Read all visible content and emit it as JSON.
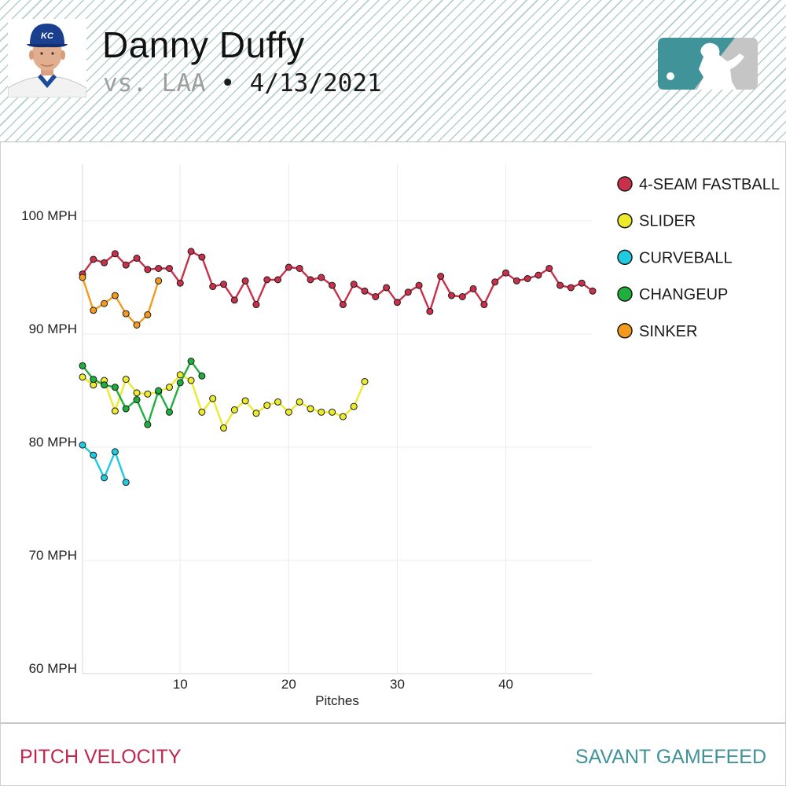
{
  "header": {
    "pitcher_name": "Danny Duffy",
    "opponent": "vs. LAA",
    "separator": "•",
    "date": "4/13/2021"
  },
  "footer": {
    "left_label": "PITCH VELOCITY",
    "right_label": "SAVANT GAMEFEED"
  },
  "colors": {
    "fastball": "#c9304a",
    "slider": "#ecea2c",
    "curveball": "#1ecbe1",
    "changeup": "#1faf3c",
    "sinker": "#f49a1c",
    "brand_teal": "#41939a",
    "brand_red": "#c2264f"
  },
  "icons": {
    "logo": "mlb-logo-icon",
    "avatar": "player-headshot"
  },
  "chart_data": {
    "type": "line",
    "title": "",
    "xlabel": "Pitches",
    "ylabel": "",
    "xlim": [
      1,
      48
    ],
    "ylim": [
      60,
      105
    ],
    "x_ticks": [
      10,
      20,
      30,
      40
    ],
    "y_ticks": [
      {
        "value": 60,
        "label": "60 MPH"
      },
      {
        "value": 70,
        "label": "70 MPH"
      },
      {
        "value": 80,
        "label": "80 MPH"
      },
      {
        "value": 90,
        "label": "90 MPH"
      },
      {
        "value": 100,
        "label": "100 MPH"
      }
    ],
    "grid": true,
    "legend_position": "right",
    "series": [
      {
        "name": "4-SEAM FASTBALL",
        "color": "#c9304a",
        "values": [
          95.3,
          96.6,
          96.3,
          97.1,
          96.1,
          96.7,
          95.7,
          95.8,
          95.8,
          94.5,
          97.3,
          96.8,
          94.2,
          94.4,
          93.0,
          94.7,
          92.6,
          94.8,
          94.8,
          95.9,
          95.8,
          94.8,
          95.0,
          94.3,
          92.6,
          94.4,
          93.8,
          93.3,
          94.1,
          92.8,
          93.7,
          94.3,
          92.0,
          95.1,
          93.4,
          93.3,
          94.0,
          92.6,
          94.6,
          95.4,
          94.7,
          94.9,
          95.2,
          95.8,
          94.3,
          94.1,
          94.5,
          93.8
        ]
      },
      {
        "name": "SLIDER",
        "color": "#ecea2c",
        "values": [
          86.2,
          85.5,
          85.9,
          83.2,
          86.0,
          84.8,
          84.7,
          84.9,
          85.3,
          86.4,
          85.9,
          83.1,
          84.3,
          81.7,
          83.3,
          84.1,
          83.0,
          83.7,
          84.0,
          83.1,
          84.0,
          83.4,
          83.1,
          83.1,
          82.7,
          83.6,
          85.8
        ]
      },
      {
        "name": "CURVEBALL",
        "color": "#1ecbe1",
        "values": [
          80.2,
          79.3,
          77.3,
          79.6,
          76.9
        ]
      },
      {
        "name": "CHANGEUP",
        "color": "#1faf3c",
        "values": [
          87.2,
          86.0,
          85.5,
          85.3,
          83.4,
          84.2,
          82.0,
          85.0,
          83.1,
          85.7,
          87.6,
          86.3
        ]
      },
      {
        "name": "SINKER",
        "color": "#f49a1c",
        "values": [
          95.0,
          92.1,
          92.7,
          93.4,
          91.8,
          90.8,
          91.7,
          94.7
        ]
      }
    ]
  }
}
